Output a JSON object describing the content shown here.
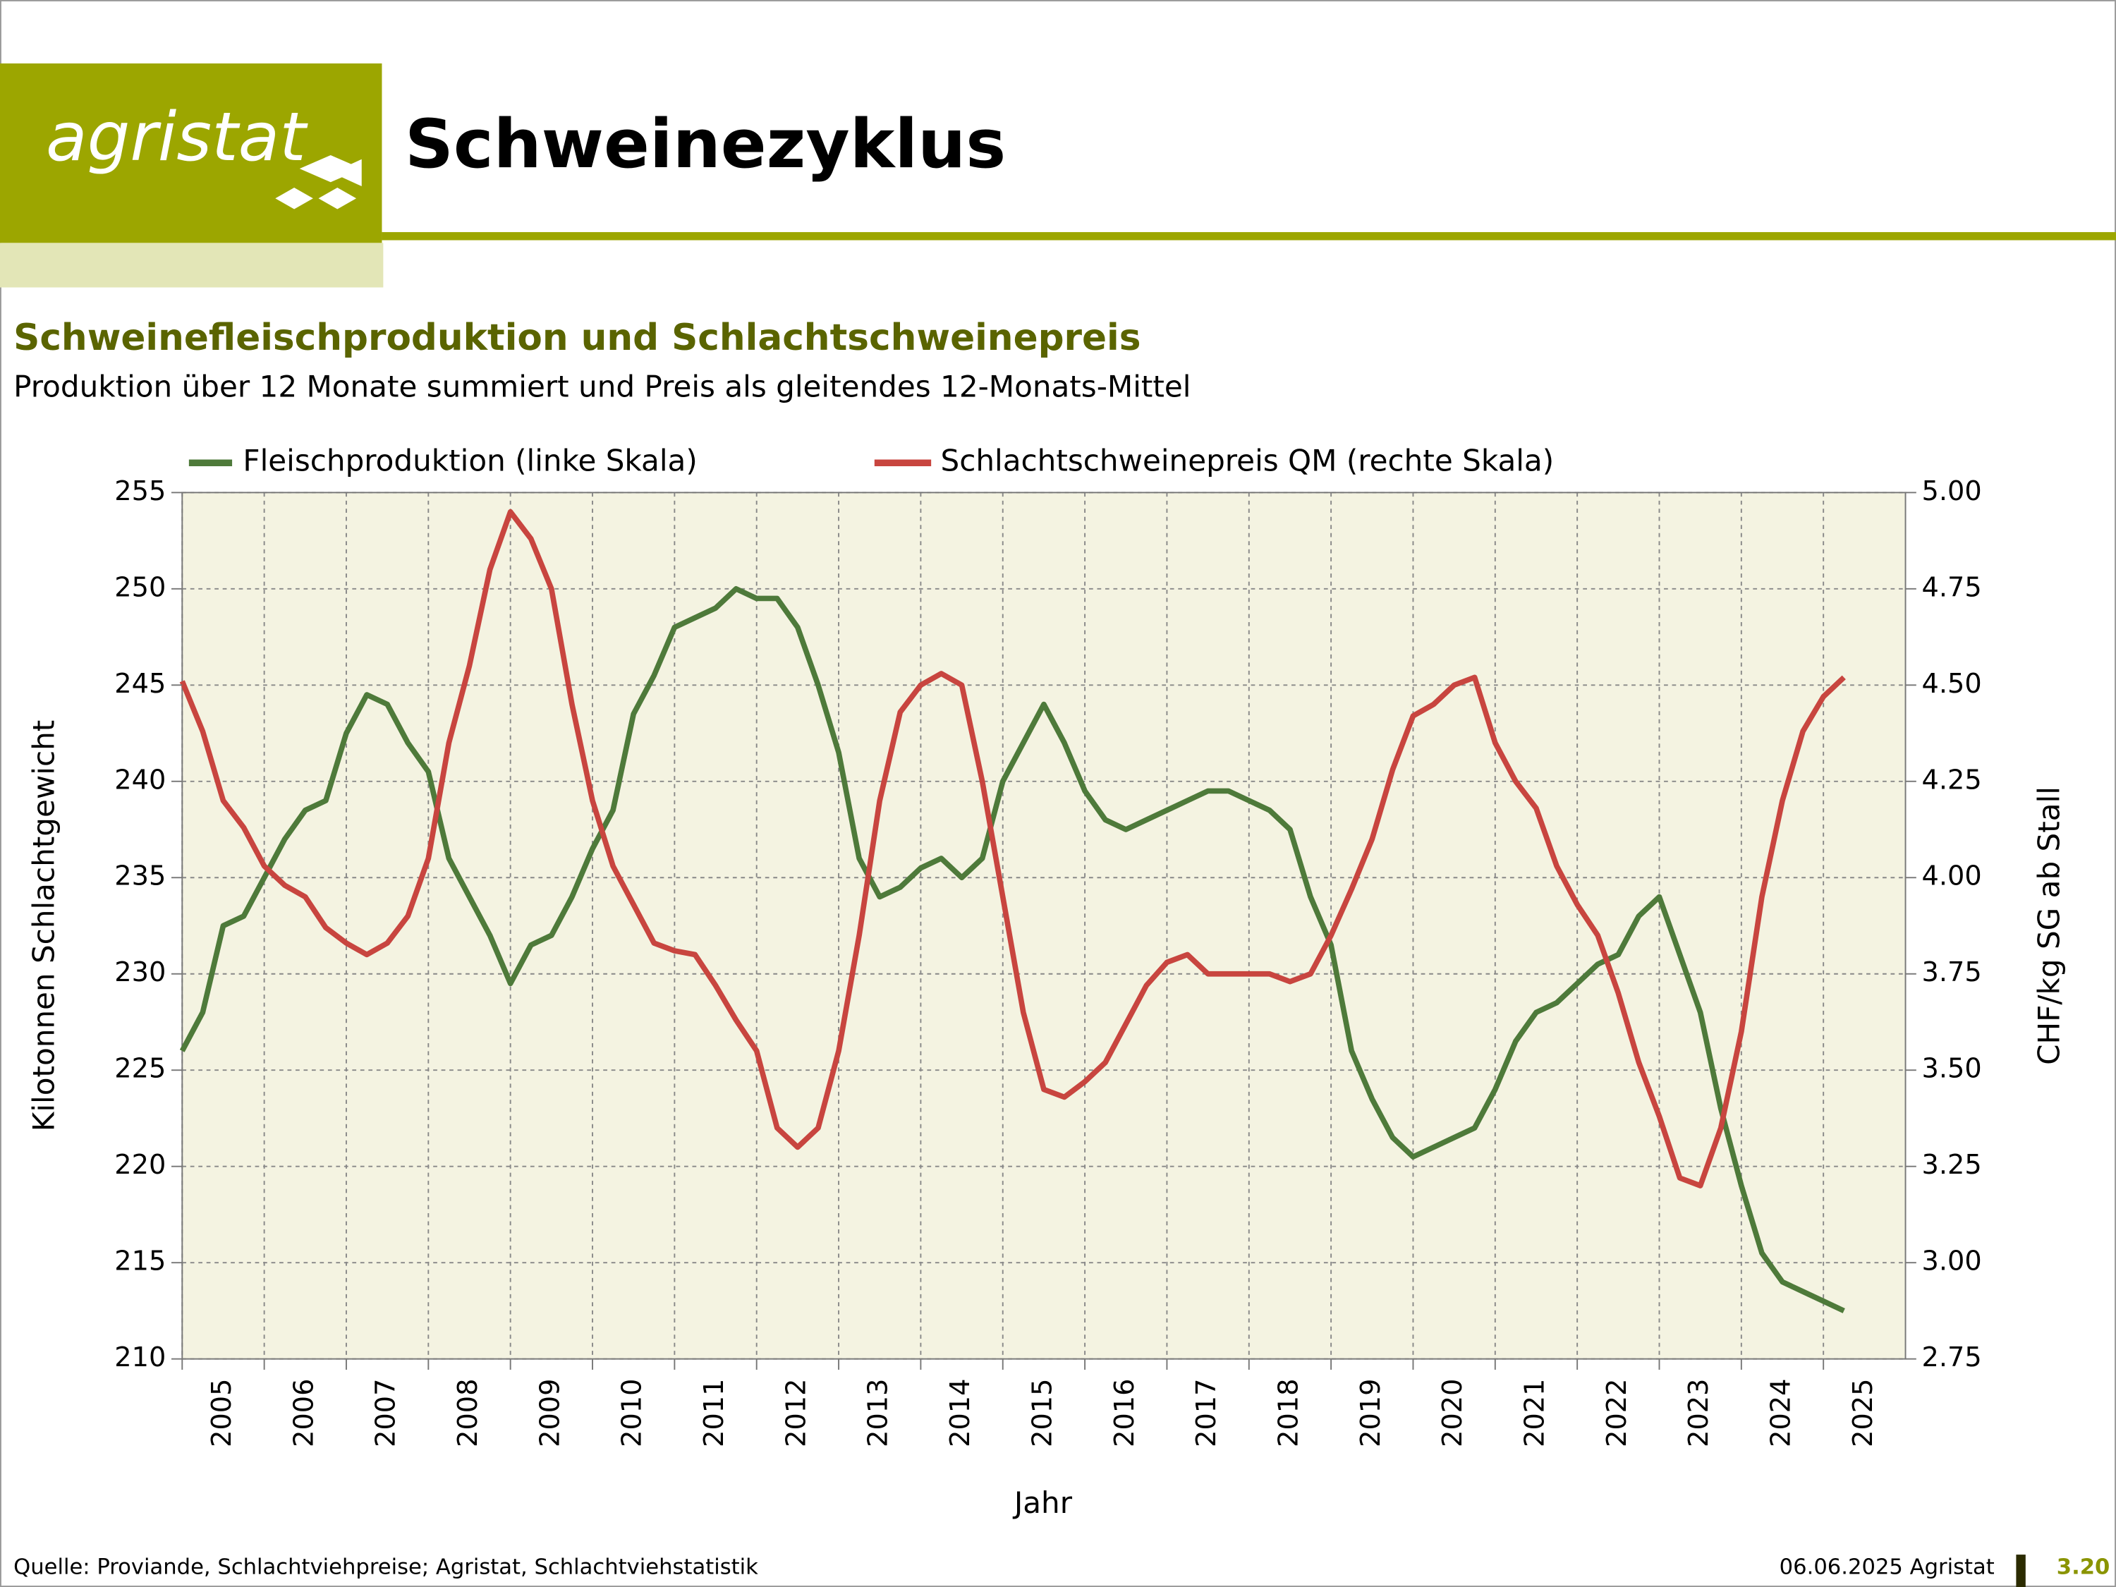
{
  "header": {
    "logo": "agristat",
    "title": "Schweinezyklus"
  },
  "chart_data": {
    "type": "line",
    "title": "Schweinefleischproduktion und Schlachtschweinepreis",
    "subtitle": "Produktion über 12 Monate summiert und Preis als gleitendes 12-Monats-Mittel",
    "xlabel": "Jahr",
    "ylabel": "Kilotonnen Schlachtgewicht",
    "y2label": "CHF/kg SG ab Stall",
    "legend": "top",
    "grid": true,
    "x": [
      2005,
      2005.25,
      2005.5,
      2005.75,
      2006,
      2006.25,
      2006.5,
      2006.75,
      2007,
      2007.25,
      2007.5,
      2007.75,
      2008,
      2008.25,
      2008.5,
      2008.75,
      2009,
      2009.25,
      2009.5,
      2009.75,
      2010,
      2010.25,
      2010.5,
      2010.75,
      2011,
      2011.25,
      2011.5,
      2011.75,
      2012,
      2012.25,
      2012.5,
      2012.75,
      2013,
      2013.25,
      2013.5,
      2013.75,
      2014,
      2014.25,
      2014.5,
      2014.75,
      2015,
      2015.25,
      2015.5,
      2015.75,
      2016,
      2016.25,
      2016.5,
      2016.75,
      2017,
      2017.25,
      2017.5,
      2017.75,
      2018,
      2018.25,
      2018.5,
      2018.75,
      2019,
      2019.25,
      2019.5,
      2019.75,
      2020,
      2020.25,
      2020.5,
      2020.75,
      2021,
      2021.25,
      2021.5,
      2021.75,
      2022,
      2022.25,
      2022.5,
      2022.75,
      2023,
      2023.25,
      2023.5,
      2023.75,
      2024,
      2024.25,
      2024.5,
      2024.75,
      2025,
      2025.25
    ],
    "series": [
      {
        "name": "Fleischproduktion (linke Skala)",
        "color": "#4e7a3a",
        "values": [
          226,
          228,
          232.5,
          233,
          235,
          237,
          238.5,
          239,
          242.5,
          244.5,
          244,
          242,
          240.5,
          236,
          234,
          232,
          229.5,
          231.5,
          232,
          234,
          236.5,
          238.5,
          243.5,
          245.5,
          248,
          248.5,
          249,
          250,
          249.5,
          249.5,
          248,
          245,
          241.5,
          236,
          234,
          234.5,
          235.5,
          236,
          235,
          236,
          240,
          242,
          244,
          242,
          239.5,
          238,
          237.5,
          238,
          238.5,
          239,
          239.5,
          239.5,
          239,
          238.5,
          237.5,
          234,
          231.5,
          226,
          223.5,
          221.5,
          220.5,
          221,
          221.5,
          222,
          224,
          226.5,
          228,
          228.5,
          229.5,
          230.5,
          231,
          233,
          234,
          231,
          228,
          223,
          219,
          215.5,
          214,
          213.5,
          213,
          212.5
        ]
      },
      {
        "name": "Schlachtschweinepreis QM (rechte Skala)",
        "color": "#c8453f",
        "axis": "y2",
        "values": [
          4.51,
          4.38,
          4.2,
          4.13,
          4.03,
          3.98,
          3.95,
          3.87,
          3.83,
          3.8,
          3.83,
          3.9,
          4.05,
          4.35,
          4.55,
          4.8,
          4.95,
          4.88,
          4.75,
          4.45,
          4.2,
          4.03,
          3.93,
          3.83,
          3.81,
          3.8,
          3.72,
          3.63,
          3.55,
          3.35,
          3.3,
          3.35,
          3.55,
          3.85,
          4.2,
          4.43,
          4.5,
          4.53,
          4.5,
          4.25,
          3.95,
          3.65,
          3.45,
          3.43,
          3.47,
          3.52,
          3.62,
          3.72,
          3.78,
          3.8,
          3.75,
          3.75,
          3.75,
          3.75,
          3.73,
          3.75,
          3.85,
          3.97,
          4.1,
          4.28,
          4.42,
          4.45,
          4.5,
          4.52,
          4.35,
          4.25,
          4.18,
          4.03,
          3.93,
          3.85,
          3.7,
          3.52,
          3.38,
          3.22,
          3.2,
          3.35,
          3.6,
          3.95,
          4.2,
          4.38,
          4.47,
          4.52
        ]
      }
    ],
    "xlim": [
      2005,
      2026
    ],
    "xticks": [
      2005,
      2006,
      2007,
      2008,
      2009,
      2010,
      2011,
      2012,
      2013,
      2014,
      2015,
      2016,
      2017,
      2018,
      2019,
      2020,
      2021,
      2022,
      2023,
      2024,
      2025
    ],
    "ylim": [
      210,
      255
    ],
    "yticks": [
      210,
      215,
      220,
      225,
      230,
      235,
      240,
      245,
      250,
      255
    ],
    "y2lim": [
      2.75,
      5
    ],
    "y2ticks": [
      2.75,
      {
        "value": 3,
        "label": "3.00"
      },
      3.25,
      {
        "value": 3.5,
        "label": "3.50"
      },
      3.75,
      {
        "value": 4,
        "label": "4.00"
      },
      4.25,
      {
        "value": 4.5,
        "label": "4.50"
      },
      4.75,
      {
        "value": 5,
        "label": "5.00"
      }
    ]
  },
  "footer": {
    "source": "Quelle: Proviande, Schlachtviehpreise; Agristat, Schlachtviehstatistik",
    "date": "06.06.2025 Agristat",
    "page": "3.20"
  }
}
